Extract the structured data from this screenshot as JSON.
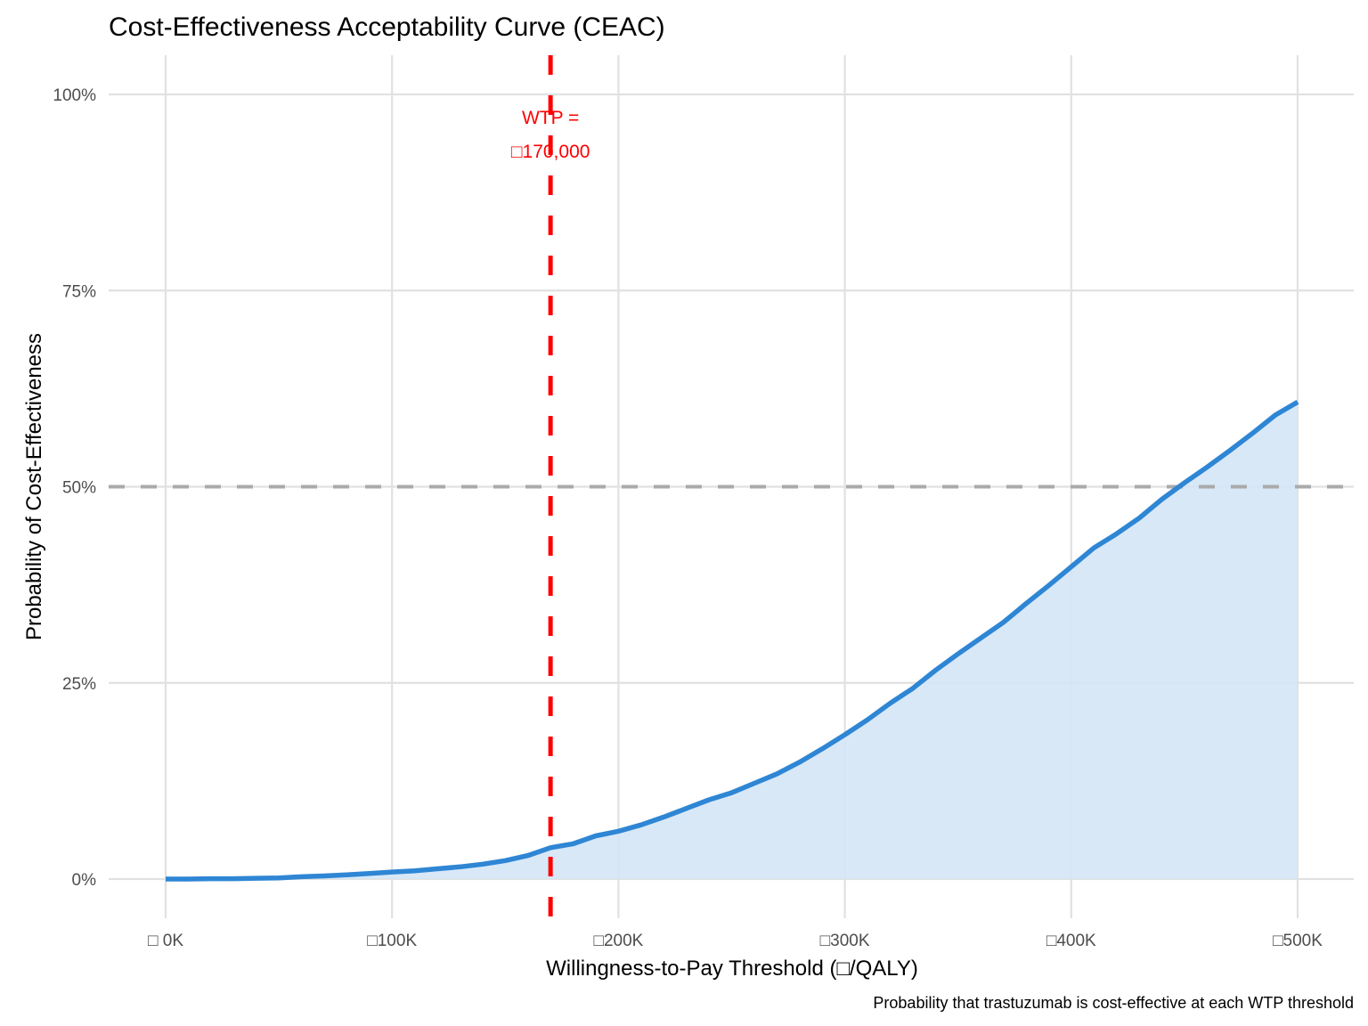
{
  "chart_data": {
    "type": "area",
    "title": "Cost-Effectiveness Acceptability Curve (CEAC)",
    "xlabel": "Willingness-to-Pay Threshold (□/QALY)",
    "ylabel": "Probability of Cost-Effectiveness",
    "caption": "Probability that trastuzumab is cost-effective at each WTP threshold",
    "xlim": [
      -25000,
      525000
    ],
    "ylim": [
      -0.05,
      1.05
    ],
    "grid": true,
    "x_ticks": [
      {
        "value": 0,
        "label": "□  0K"
      },
      {
        "value": 100000,
        "label": "□100K"
      },
      {
        "value": 200000,
        "label": "□200K"
      },
      {
        "value": 300000,
        "label": "□300K"
      },
      {
        "value": 400000,
        "label": "□400K"
      },
      {
        "value": 500000,
        "label": "□500K"
      }
    ],
    "y_ticks": [
      {
        "value": 0,
        "label": "0%"
      },
      {
        "value": 0.25,
        "label": "25%"
      },
      {
        "value": 0.5,
        "label": "50%"
      },
      {
        "value": 0.75,
        "label": "75%"
      },
      {
        "value": 1.0,
        "label": "100%"
      }
    ],
    "series": [
      {
        "name": "CEAC",
        "color": "#2e86d4",
        "fill": "#d4e5f6",
        "x": [
          0,
          10000,
          20000,
          30000,
          40000,
          50000,
          60000,
          70000,
          80000,
          90000,
          100000,
          110000,
          120000,
          130000,
          140000,
          150000,
          160000,
          170000,
          180000,
          190000,
          200000,
          210000,
          220000,
          230000,
          240000,
          250000,
          260000,
          270000,
          280000,
          290000,
          300000,
          310000,
          320000,
          330000,
          340000,
          350000,
          360000,
          370000,
          380000,
          390000,
          400000,
          410000,
          420000,
          430000,
          440000,
          450000,
          460000,
          470000,
          480000,
          490000,
          500000
        ],
        "y": [
          0.0,
          0.0,
          0.0005,
          0.0005,
          0.001,
          0.0015,
          0.003,
          0.004,
          0.0055,
          0.007,
          0.009,
          0.0105,
          0.013,
          0.0155,
          0.019,
          0.0235,
          0.03,
          0.04,
          0.045,
          0.055,
          0.061,
          0.069,
          0.079,
          0.09,
          0.101,
          0.11,
          0.122,
          0.134,
          0.149,
          0.166,
          0.184,
          0.203,
          0.224,
          0.243,
          0.266,
          0.287,
          0.307,
          0.327,
          0.351,
          0.374,
          0.398,
          0.422,
          0.44,
          0.46,
          0.484,
          0.505,
          0.525,
          0.546,
          0.568,
          0.591,
          0.608
        ]
      }
    ],
    "reference_lines": [
      {
        "orientation": "horizontal",
        "value": 0.5,
        "color": "#aaaaaa",
        "style": "dashed"
      },
      {
        "orientation": "vertical",
        "value": 170000,
        "color": "#ff0000",
        "style": "dashed"
      }
    ],
    "annotations": [
      {
        "line1": "WTP =",
        "line2": "□170,000",
        "x": 170000,
        "color": "#ff0000"
      }
    ]
  }
}
